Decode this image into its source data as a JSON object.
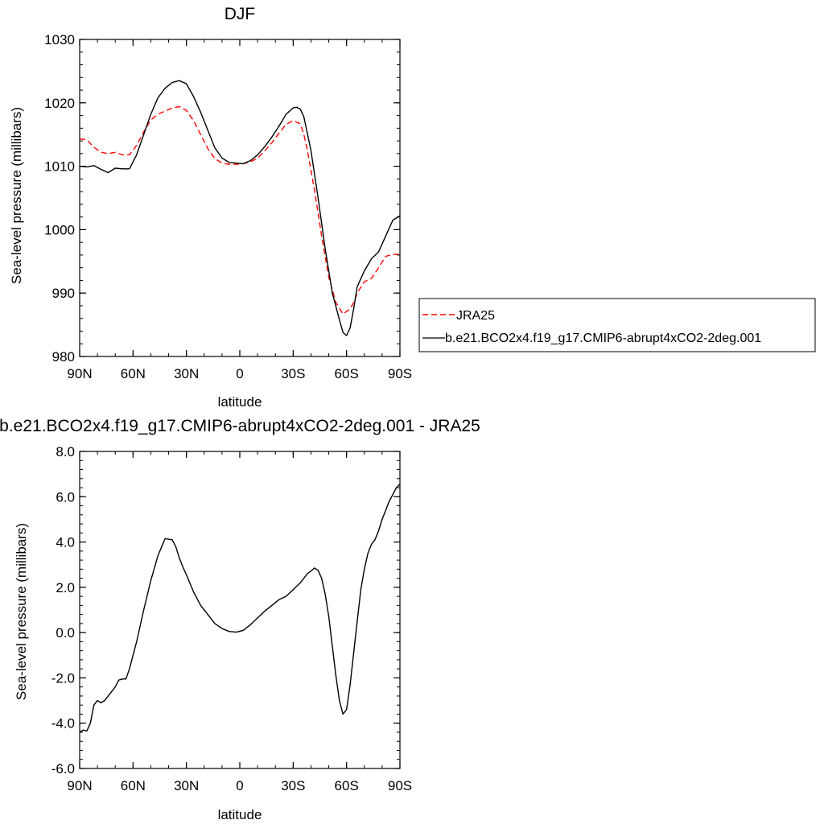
{
  "chart_data": [
    {
      "type": "line",
      "title": "DJF",
      "xlabel": "latitude",
      "ylabel": "Sea-level pressure (millibars)",
      "xlim": [
        90,
        -90
      ],
      "ylim": [
        980,
        1030
      ],
      "xticks": [
        90,
        60,
        30,
        0,
        -30,
        -60,
        -90
      ],
      "xtick_labels": [
        "90N",
        "60N",
        "30N",
        "0",
        "30S",
        "60S",
        "90S"
      ],
      "yticks": [
        980,
        990,
        1000,
        1010,
        1020,
        1030
      ],
      "ytick_labels": [
        "980",
        "990",
        "1000",
        "1010",
        "1020",
        "1030"
      ],
      "grid": false,
      "legend_position": "right",
      "series": [
        {
          "name": "JRA25",
          "color": "#ff0000",
          "style": "dashed",
          "x": [
            90,
            86,
            82,
            78,
            74,
            70,
            66,
            62,
            58,
            54,
            50,
            46,
            42,
            38,
            34,
            30,
            26,
            22,
            18,
            14,
            10,
            6,
            2,
            -2,
            -6,
            -10,
            -14,
            -18,
            -22,
            -26,
            -30,
            -34,
            -36,
            -38,
            -42,
            -46,
            -50,
            -54,
            -58,
            -62,
            -64,
            -66,
            -70,
            -74,
            -78,
            -82,
            -86,
            -90
          ],
          "y": [
            1014.3,
            1014.2,
            1013.0,
            1012.2,
            1012.0,
            1012.2,
            1011.8,
            1011.8,
            1013.3,
            1015.4,
            1017.3,
            1018.2,
            1018.7,
            1019.2,
            1019.4,
            1018.8,
            1017.2,
            1015.0,
            1012.8,
            1011.2,
            1010.5,
            1010.3,
            1010.3,
            1010.4,
            1010.7,
            1011.3,
            1012.4,
            1013.7,
            1015.2,
            1016.6,
            1017.2,
            1016.7,
            1015.0,
            1012.5,
            1006.2,
            999.0,
            992.5,
            988.5,
            986.7,
            987.5,
            988.5,
            990.0,
            991.8,
            992.3,
            994.0,
            995.8,
            996.1,
            996.1
          ]
        },
        {
          "name": "b.e21.BCO2x4.f19_g17.CMIP6-abrupt4xCO2-2deg.001",
          "color": "#000000",
          "style": "solid",
          "x": [
            90,
            86,
            82,
            78,
            74,
            70,
            66,
            62,
            58,
            54,
            50,
            46,
            42,
            38,
            34,
            30,
            26,
            22,
            18,
            14,
            10,
            6,
            2,
            -2,
            -6,
            -10,
            -14,
            -18,
            -22,
            -26,
            -30,
            -32,
            -34,
            -36,
            -40,
            -44,
            -48,
            -52,
            -56,
            -58,
            -60,
            -62,
            -64,
            -66,
            -70,
            -74,
            -78,
            -82,
            -86,
            -90
          ],
          "y": [
            1010.0,
            1009.9,
            1010.1,
            1009.5,
            1009.0,
            1009.7,
            1009.6,
            1009.6,
            1011.8,
            1015.0,
            1018.2,
            1020.8,
            1022.3,
            1023.2,
            1023.5,
            1023.0,
            1021.0,
            1018.5,
            1015.7,
            1012.9,
            1011.3,
            1010.6,
            1010.5,
            1010.4,
            1010.9,
            1011.8,
            1013.1,
            1014.6,
            1016.3,
            1018.2,
            1019.2,
            1019.3,
            1019.0,
            1017.8,
            1012.5,
            1005.0,
            997.0,
            990.0,
            985.8,
            983.8,
            983.3,
            984.5,
            987.5,
            991.0,
            993.5,
            995.4,
            996.5,
            999.0,
            1001.5,
            1002.2
          ]
        }
      ]
    },
    {
      "type": "line",
      "title": "b.e21.BCO2x4.f19_g17.CMIP6-abrupt4xCO2-2deg.001 - JRA25",
      "xlabel": "latitude",
      "ylabel": "Sea-level pressure (millibars)",
      "xlim": [
        90,
        -90
      ],
      "ylim": [
        -6.0,
        8.0
      ],
      "xticks": [
        90,
        60,
        30,
        0,
        -30,
        -60,
        -90
      ],
      "xtick_labels": [
        "90N",
        "60N",
        "30N",
        "0",
        "30S",
        "60S",
        "90S"
      ],
      "yticks": [
        -6,
        -4,
        -2,
        0,
        2,
        4,
        6,
        8
      ],
      "ytick_labels": [
        "-6.0",
        "-4.0",
        "-2.0",
        "0.0",
        "2.0",
        "4.0",
        "6.0",
        "8.0"
      ],
      "grid": false,
      "series": [
        {
          "color": "#000000",
          "style": "solid",
          "x": [
            90,
            88,
            86,
            84,
            82,
            80,
            78,
            76,
            74,
            72,
            70,
            68,
            66,
            64,
            62,
            60,
            58,
            54,
            50,
            46,
            42,
            38,
            36,
            34,
            32,
            30,
            26,
            22,
            18,
            14,
            10,
            6,
            2,
            -2,
            -6,
            -10,
            -14,
            -18,
            -22,
            -26,
            -30,
            -34,
            -38,
            -42,
            -44,
            -46,
            -48,
            -50,
            -52,
            -54,
            -56,
            -58,
            -60,
            -62,
            -64,
            -66,
            -68,
            -70,
            -72,
            -74,
            -76,
            -78,
            -80,
            -82,
            -84,
            -86,
            -88,
            -90
          ],
          "y": [
            -4.4,
            -4.3,
            -4.35,
            -4.0,
            -3.2,
            -3.0,
            -3.1,
            -3.0,
            -2.8,
            -2.6,
            -2.4,
            -2.1,
            -2.05,
            -2.05,
            -1.6,
            -1.0,
            -0.4,
            1.0,
            2.3,
            3.4,
            4.15,
            4.1,
            3.8,
            3.3,
            2.9,
            2.55,
            1.8,
            1.2,
            0.8,
            0.4,
            0.18,
            0.05,
            0.02,
            0.1,
            0.35,
            0.65,
            0.95,
            1.2,
            1.45,
            1.6,
            1.9,
            2.2,
            2.6,
            2.85,
            2.75,
            2.4,
            1.7,
            0.7,
            -0.6,
            -1.9,
            -3.0,
            -3.6,
            -3.4,
            -2.3,
            -0.9,
            0.5,
            1.9,
            2.8,
            3.5,
            3.9,
            4.1,
            4.5,
            5.0,
            5.4,
            5.8,
            6.1,
            6.4,
            6.55
          ]
        }
      ]
    }
  ]
}
